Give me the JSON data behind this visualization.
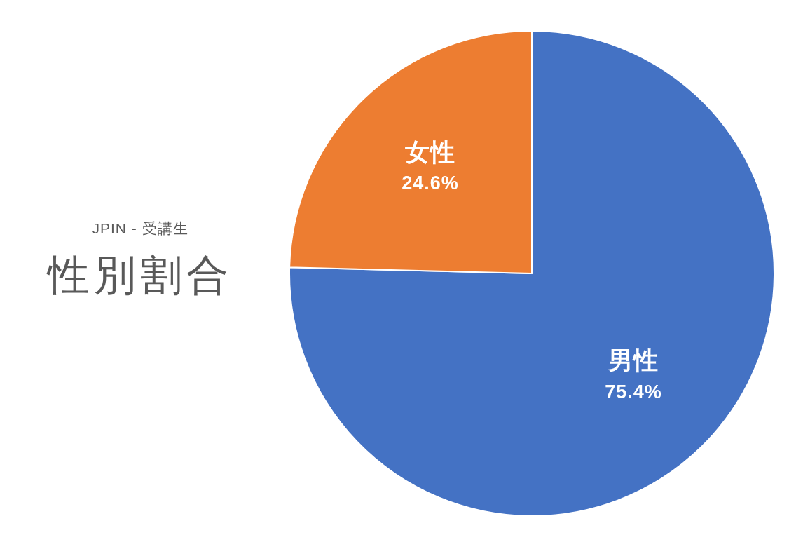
{
  "chart_data": {
    "type": "pie",
    "title": "性別割合",
    "subtitle": "JPIN - 受講生",
    "categories": [
      "男性",
      "女性"
    ],
    "values": [
      75.4,
      24.6
    ],
    "colors": [
      "#4472c4",
      "#ed7d31"
    ],
    "value_labels": [
      "75.4%",
      "24.6%"
    ]
  }
}
